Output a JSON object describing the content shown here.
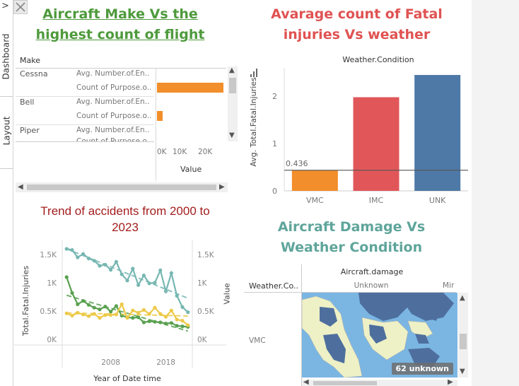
{
  "sidebar": {
    "tabs": [
      {
        "label": "Dashboard"
      },
      {
        "label": "Layout"
      }
    ],
    "expand_glyph": ">",
    "close_glyph": "✕"
  },
  "panels": {
    "make": {
      "title_line1": "Aircraft Make Vs the",
      "title_line2": "highest count of flight",
      "header": "Make",
      "value_label": "Value",
      "ticks": [
        "0K",
        "10K",
        "20K"
      ],
      "rows": [
        {
          "make": "Cessna",
          "measures": [
            "Avg. Number.of.En..",
            "Count of Purpose.o.."
          ],
          "bars": [
            0,
            27500
          ]
        },
        {
          "make": "Bell",
          "measures": [
            "Avg. Number.of.En..",
            "Count of Purpose.o.."
          ],
          "bars": [
            0,
            1200
          ]
        },
        {
          "make": "Piper",
          "measures": [
            "Avg. Number.of.En..",
            "Count of Purpose.o.."
          ],
          "bars": [
            0,
            0
          ]
        }
      ]
    },
    "fatal": {
      "title_line1": "Avarage count of Fatal",
      "title_line2": "injuries Vs weather",
      "header": "Weather.Condition",
      "ylabel": "Avg. Total.Fatal.Injuries",
      "ref_label": "0.436"
    },
    "trend": {
      "title_line1": "Trend of accidents from 2000 to",
      "title_line2": "2023",
      "ylabel_left": "Total.Fatal.Injuries",
      "ylabel_right": "Value",
      "xlabel": "Year of Date time"
    },
    "damage": {
      "title_line1": "Aircraft Damage Vs",
      "title_line2": "Weather Condition",
      "col_header": "Aircraft.damage",
      "row_header": "Weather.Co..",
      "col1": "Unknown",
      "col2": "Mir",
      "row1": "VMC",
      "badge": "62 unknown"
    }
  },
  "chart_data": [
    {
      "type": "bar",
      "categories": [
        "VMC",
        "IMC",
        "UNK"
      ],
      "values": [
        0.436,
        1.98,
        2.45
      ],
      "colors": [
        "#f28e2b",
        "#e15759",
        "#4e79a7"
      ],
      "ylabel": "Avg. Total.Fatal.Injuries",
      "yticks": [
        "0",
        "1",
        "2"
      ],
      "ylim": [
        0,
        2.6
      ],
      "reference_line": 0.436
    },
    {
      "type": "line",
      "x": [
        2000,
        2001,
        2002,
        2003,
        2004,
        2005,
        2006,
        2007,
        2008,
        2009,
        2010,
        2011,
        2012,
        2013,
        2014,
        2015,
        2016,
        2017,
        2018,
        2019,
        2020,
        2021,
        2022
      ],
      "xticks": [
        "2008",
        "2018"
      ],
      "yticks_left": [
        "0K",
        "0.5K",
        "1K",
        "1.5K"
      ],
      "yticks_right": [
        "0K",
        "0.5K",
        "1K",
        "1.5K"
      ],
      "ylim": [
        0,
        1700
      ],
      "series": [
        {
          "color": "#76b7b2",
          "values": [
            1600,
            1580,
            1450,
            1510,
            1430,
            1390,
            1300,
            1320,
            1230,
            1370,
            1150,
            1040,
            1250,
            960,
            1130,
            990,
            1000,
            1220,
            850,
            1170,
            770,
            570,
            480
          ]
        },
        {
          "color": "#59a14f",
          "values": [
            1100,
            820,
            620,
            680,
            610,
            560,
            530,
            580,
            490,
            590,
            420,
            390,
            380,
            390,
            300,
            320,
            310,
            300,
            280,
            290,
            240,
            230,
            220
          ]
        },
        {
          "color": "#edc948",
          "values": [
            460,
            420,
            470,
            440,
            410,
            450,
            380,
            430,
            430,
            440,
            620,
            380,
            510,
            470,
            520,
            450,
            560,
            450,
            400,
            510,
            350,
            330,
            250
          ]
        }
      ]
    }
  ]
}
